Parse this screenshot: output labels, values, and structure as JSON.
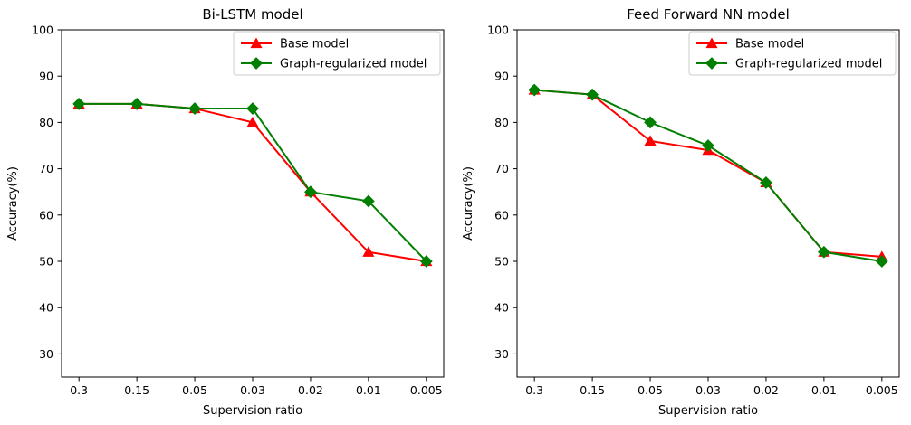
{
  "figure": {
    "background": "#ffffff",
    "axis_color": "#000000",
    "text_color": "#000000",
    "legend_border_color": "#cccccc",
    "legend_background": "#ffffff"
  },
  "chart_data": [
    {
      "type": "line",
      "title": "Bi-LSTM model",
      "xlabel": "Supervision ratio",
      "ylabel": "Accuracy(%)",
      "categories": [
        "0.3",
        "0.15",
        "0.05",
        "0.03",
        "0.02",
        "0.01",
        "0.005"
      ],
      "yticks": [
        30,
        40,
        50,
        60,
        70,
        80,
        90,
        100
      ],
      "ylim": [
        25,
        100
      ],
      "grid": false,
      "legend_position": "upper right",
      "series": [
        {
          "name": "Base model",
          "color": "#ff0000",
          "marker": "triangle",
          "values": [
            84,
            84,
            83,
            80,
            65,
            52,
            50
          ]
        },
        {
          "name": "Graph-regularized model",
          "color": "#008000",
          "marker": "diamond",
          "values": [
            84,
            84,
            83,
            83,
            65,
            63,
            50
          ]
        }
      ]
    },
    {
      "type": "line",
      "title": "Feed Forward NN model",
      "xlabel": "Supervision ratio",
      "ylabel": "Accuracy(%)",
      "categories": [
        "0.3",
        "0.15",
        "0.05",
        "0.03",
        "0.02",
        "0.01",
        "0.005"
      ],
      "yticks": [
        30,
        40,
        50,
        60,
        70,
        80,
        90,
        100
      ],
      "ylim": [
        25,
        100
      ],
      "grid": false,
      "legend_position": "upper right",
      "series": [
        {
          "name": "Base model",
          "color": "#ff0000",
          "marker": "triangle",
          "values": [
            87,
            86,
            76,
            74,
            67,
            52,
            51
          ]
        },
        {
          "name": "Graph-regularized model",
          "color": "#008000",
          "marker": "diamond",
          "values": [
            87,
            86,
            80,
            75,
            67,
            52,
            50
          ]
        }
      ]
    }
  ]
}
